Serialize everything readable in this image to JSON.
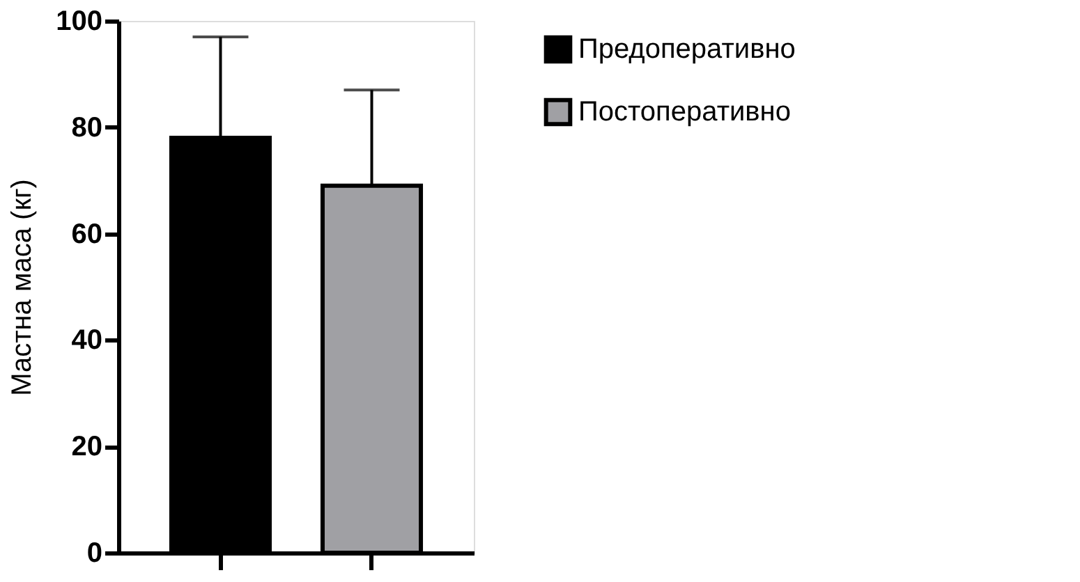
{
  "chart_data": {
    "type": "bar",
    "categories": [
      null,
      null
    ],
    "series": [
      {
        "name": "Предоперативно",
        "color": "#000000",
        "values": [
          78,
          null
        ],
        "errors": [
          [
            78,
            97
          ],
          null
        ]
      },
      {
        "name": "Постоперативно",
        "color": "#a0a0a4",
        "values": [
          null,
          69
        ],
        "errors": [
          null,
          [
            69,
            87
          ]
        ]
      }
    ],
    "ylabel": "Мастна маса (кг)",
    "ylim": [
      0,
      100
    ],
    "yticks": [
      0,
      20,
      40,
      60,
      80,
      100
    ],
    "legend": "top right",
    "tick_labels": "y"
  }
}
